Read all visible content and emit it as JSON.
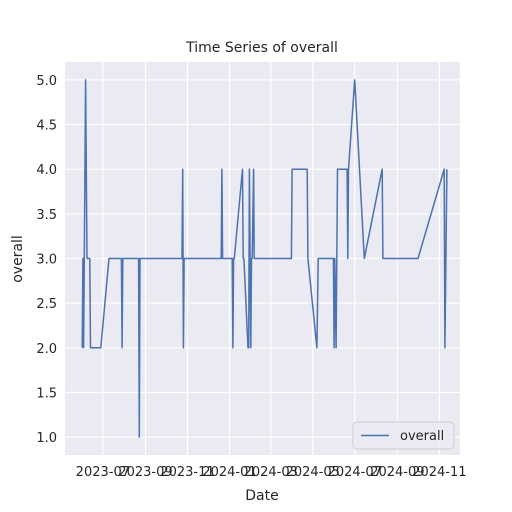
{
  "chart_data": {
    "type": "line",
    "title": "Time Series of overall",
    "xlabel": "Date",
    "ylabel": "overall",
    "grid": true,
    "legend_position": "bottom-right",
    "colors": {
      "line": "#4c72b0",
      "plot_background": "#eaeaf2",
      "grid": "#ffffff"
    },
    "x_ticks": [
      "2023-07",
      "2023-09",
      "2023-11",
      "2024-01",
      "2024-03",
      "2024-05",
      "2024-07",
      "2024-09",
      "2024-11"
    ],
    "y_ticks": [
      "1.0",
      "1.5",
      "2.0",
      "2.5",
      "3.0",
      "3.5",
      "4.0",
      "4.5",
      "5.0"
    ],
    "xlim": [
      "2023-05-07",
      "2024-12-01"
    ],
    "ylim": [
      0.8,
      5.2
    ],
    "series": [
      {
        "name": "overall",
        "x": [
          "2023-06-01",
          "2023-06-02",
          "2023-06-03",
          "2023-06-04",
          "2023-06-06",
          "2023-06-08",
          "2023-06-10",
          "2023-06-12",
          "2023-06-13",
          "2023-06-28",
          "2023-07-10",
          "2023-07-27",
          "2023-07-28",
          "2023-07-29",
          "2023-07-30",
          "2023-08-22",
          "2023-08-23",
          "2023-08-24",
          "2023-10-24",
          "2023-10-25",
          "2023-10-26",
          "2023-10-27",
          "2023-11-01",
          "2023-12-20",
          "2023-12-21",
          "2023-12-22",
          "2024-01-05",
          "2024-01-06",
          "2024-01-07",
          "2024-01-08",
          "2024-01-20",
          "2024-01-21",
          "2024-01-22",
          "2024-01-28",
          "2024-01-29",
          "2024-01-30",
          "2024-02-01",
          "2024-02-02",
          "2024-02-03",
          "2024-02-05",
          "2024-02-06",
          "2024-02-25",
          "2024-03-31",
          "2024-04-01",
          "2024-04-23",
          "2024-04-24",
          "2024-05-07",
          "2024-05-09",
          "2024-05-31",
          "2024-06-01",
          "2024-06-02",
          "2024-06-04",
          "2024-06-06",
          "2024-06-07",
          "2024-06-20",
          "2024-06-21",
          "2024-06-22",
          "2024-07-01",
          "2024-07-15",
          "2024-08-10",
          "2024-08-11",
          "2024-10-01",
          "2024-11-08",
          "2024-11-09",
          "2024-11-12"
        ],
        "y": [
          2,
          3,
          2,
          3,
          5,
          3,
          3,
          3,
          2,
          2,
          3,
          3,
          3,
          2,
          3,
          3,
          1,
          3,
          3,
          4,
          2,
          3,
          3,
          3,
          4,
          3,
          3,
          2,
          3,
          3,
          4,
          3,
          3,
          2,
          2,
          4,
          2,
          3,
          3,
          4,
          3,
          3,
          3,
          4,
          4,
          3,
          2,
          3,
          3,
          2,
          3,
          2,
          4,
          4,
          4,
          3,
          4,
          5,
          3,
          4,
          3,
          3,
          4,
          2,
          4
        ]
      }
    ]
  }
}
